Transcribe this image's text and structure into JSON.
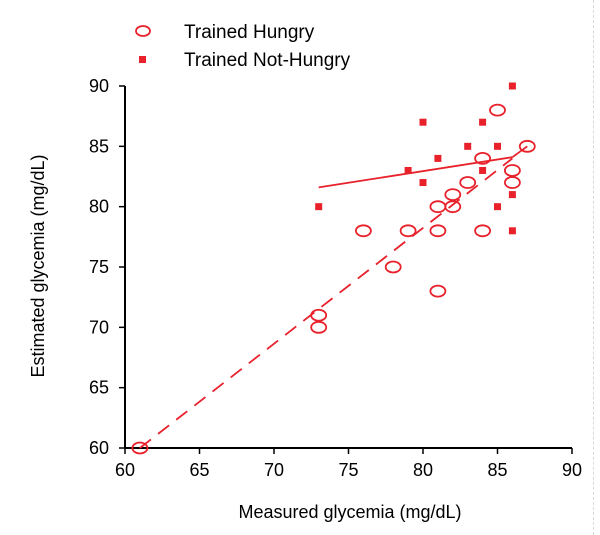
{
  "chart_data": {
    "type": "scatter",
    "xlabel": "Measured glycemia (mg/dL)",
    "ylabel": "Estimated glycemia (mg/dL)",
    "xlim": [
      60,
      90
    ],
    "ylim": [
      60,
      90
    ],
    "xticks": [
      "60",
      "65",
      "70",
      "75",
      "80",
      "85",
      "90"
    ],
    "yticks": [
      "60",
      "65",
      "70",
      "75",
      "80",
      "85",
      "90"
    ],
    "legend_position": "top-left",
    "grid": false,
    "series": [
      {
        "name": "Trained Hungry",
        "marker": "open-ellipse",
        "color": "#e8212b",
        "trendline": {
          "style": "dashed",
          "from": [
            61,
            60
          ],
          "to": [
            86,
            84
          ]
        },
        "points": [
          [
            61,
            60
          ],
          [
            73,
            71
          ],
          [
            73,
            70
          ],
          [
            76,
            78
          ],
          [
            78,
            75
          ],
          [
            79,
            78
          ],
          [
            81,
            78
          ],
          [
            81,
            80
          ],
          [
            81,
            73
          ],
          [
            82,
            80
          ],
          [
            82,
            81
          ],
          [
            83,
            82
          ],
          [
            84,
            84
          ],
          [
            84,
            78
          ],
          [
            85,
            88
          ],
          [
            86,
            83
          ],
          [
            86,
            82
          ],
          [
            87,
            85
          ]
        ]
      },
      {
        "name": "Trained Not-Hungry",
        "marker": "filled-square",
        "color": "#e8212b",
        "trendline": {
          "style": "solid",
          "from": [
            73,
            81.6
          ],
          "to": [
            86,
            84.1
          ]
        },
        "points": [
          [
            73,
            80
          ],
          [
            79,
            83
          ],
          [
            80,
            87
          ],
          [
            80,
            82
          ],
          [
            81,
            84
          ],
          [
            83,
            85
          ],
          [
            84,
            87
          ],
          [
            84,
            83
          ],
          [
            85,
            85
          ],
          [
            85,
            80
          ],
          [
            86,
            90
          ],
          [
            86,
            81
          ],
          [
            86,
            78
          ]
        ]
      }
    ]
  }
}
